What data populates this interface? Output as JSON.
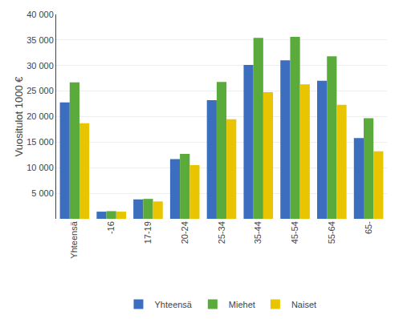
{
  "chart_data": {
    "type": "bar",
    "ylabel": "Vuositulot 1000 €",
    "categories": [
      "Yhteensä",
      "-16",
      "17-19",
      "20-24",
      "25-34",
      "35-44",
      "45-54",
      "55-64",
      "65-"
    ],
    "series": [
      {
        "name": "Yhteensä",
        "color": "#3c6ebf",
        "values": [
          22800,
          1400,
          3800,
          11700,
          23200,
          30100,
          31000,
          27000,
          15800
        ]
      },
      {
        "name": "Miehet",
        "color": "#5aaa3c",
        "values": [
          26700,
          1500,
          3900,
          12700,
          26800,
          35400,
          35600,
          31800,
          19700
        ]
      },
      {
        "name": "Naiset",
        "color": "#e8c500",
        "values": [
          18700,
          1400,
          3400,
          10500,
          19500,
          24800,
          26300,
          22300,
          13200
        ]
      }
    ],
    "ylim": [
      0,
      40000
    ],
    "yticks": [
      {
        "value": 5000,
        "label": "5 000"
      },
      {
        "value": 10000,
        "label": "10 000"
      },
      {
        "value": 15000,
        "label": "15 000"
      },
      {
        "value": 20000,
        "label": "20 000"
      },
      {
        "value": 25000,
        "label": "25 000"
      },
      {
        "value": 30000,
        "label": "30 000"
      },
      {
        "value": 35000,
        "label": "35 000"
      },
      {
        "value": 40000,
        "label": "40 000"
      }
    ],
    "grid": true,
    "legend": "bottom"
  }
}
